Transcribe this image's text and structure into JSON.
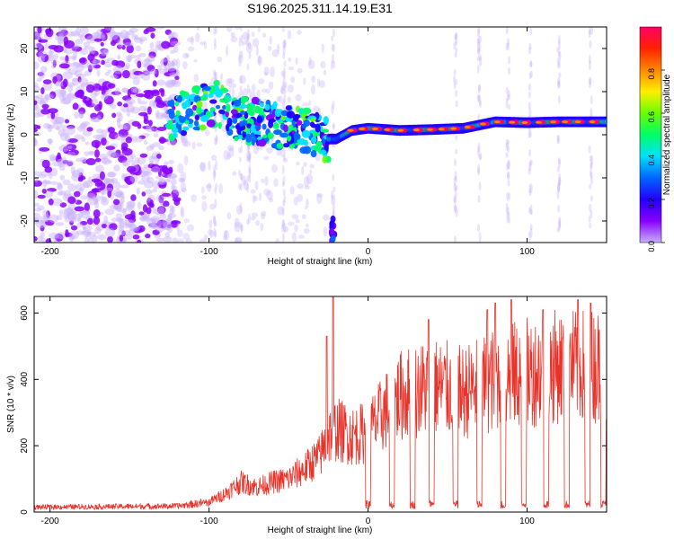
{
  "title": "S196.2025.311.14.19.E31",
  "chart_data": [
    {
      "type": "heatmap",
      "name": "spectrogram",
      "xlabel": "Height of straight line (km)",
      "ylabel": "Frequency (Hz)",
      "xlim": [
        -210,
        150
      ],
      "ylim": [
        -25,
        25
      ],
      "xticks": [
        -200,
        -100,
        0,
        100
      ],
      "yticks": [
        -20,
        -10,
        0,
        10,
        20
      ],
      "colorbar": {
        "label": "Normalized spectral amplitude",
        "range": [
          0,
          1
        ],
        "ticks": [
          "0.0",
          "0.2",
          "0.4",
          "0.6",
          "0.8"
        ],
        "colormap": [
          "#c8b0ff",
          "#8800ff",
          "#2200ff",
          "#0066ff",
          "#00e0ff",
          "#00ff66",
          "#66ff00",
          "#ffee00",
          "#ff8800",
          "#ff2200",
          "#ff0066"
        ]
      },
      "ridge_frequency_hz": [
        {
          "x": -125,
          "f": 4
        },
        {
          "x": -110,
          "f": 6
        },
        {
          "x": -95,
          "f": 7
        },
        {
          "x": -85,
          "f": 4
        },
        {
          "x": -70,
          "f": 3
        },
        {
          "x": -55,
          "f": 2
        },
        {
          "x": -40,
          "f": 1
        },
        {
          "x": -28,
          "f": -1
        },
        {
          "x": -20,
          "f": -1
        },
        {
          "x": -10,
          "f": 1
        },
        {
          "x": 0,
          "f": 1.5
        },
        {
          "x": 20,
          "f": 1
        },
        {
          "x": 40,
          "f": 1.2
        },
        {
          "x": 60,
          "f": 1.5
        },
        {
          "x": 80,
          "f": 3
        },
        {
          "x": 100,
          "f": 2.8
        },
        {
          "x": 120,
          "f": 3
        },
        {
          "x": 148,
          "f": 3
        }
      ],
      "burst_at_x_km": -22,
      "burst_freq_range_hz": [
        -25,
        -19
      ]
    },
    {
      "type": "line",
      "name": "snr",
      "xlabel": "Height of straight line (km)",
      "ylabel": "SNR (10 * v/v)",
      "xlim": [
        -210,
        150
      ],
      "ylim": [
        0,
        650
      ],
      "xticks": [
        -200,
        -100,
        0,
        100
      ],
      "yticks": [
        0,
        200,
        400,
        600
      ],
      "color": "#e8332a",
      "envelope": [
        {
          "x": -210,
          "y": 15
        },
        {
          "x": -120,
          "y": 18
        },
        {
          "x": -100,
          "y": 30
        },
        {
          "x": -90,
          "y": 55
        },
        {
          "x": -80,
          "y": 90
        },
        {
          "x": -70,
          "y": 75
        },
        {
          "x": -60,
          "y": 90
        },
        {
          "x": -50,
          "y": 100
        },
        {
          "x": -40,
          "y": 130
        },
        {
          "x": -30,
          "y": 170
        },
        {
          "x": -25,
          "y": 230
        },
        {
          "x": -20,
          "y": 250
        },
        {
          "x": -10,
          "y": 230
        },
        {
          "x": 0,
          "y": 240
        },
        {
          "x": 10,
          "y": 300
        },
        {
          "x": 20,
          "y": 350
        },
        {
          "x": 40,
          "y": 380
        },
        {
          "x": 60,
          "y": 360
        },
        {
          "x": 80,
          "y": 400
        },
        {
          "x": 100,
          "y": 420
        },
        {
          "x": 120,
          "y": 440
        },
        {
          "x": 150,
          "y": 440
        }
      ],
      "dropouts_x_km": [
        0,
        15,
        28,
        40,
        55,
        70,
        85,
        98,
        112,
        125,
        138,
        148
      ],
      "spikes": [
        {
          "x": -22,
          "y": 650
        },
        {
          "x": -26,
          "y": 530
        },
        {
          "x": 38,
          "y": 580
        },
        {
          "x": 75,
          "y": 610
        },
        {
          "x": 80,
          "y": 630
        },
        {
          "x": 90,
          "y": 640
        },
        {
          "x": 110,
          "y": 610
        },
        {
          "x": 132,
          "y": 640
        },
        {
          "x": 140,
          "y": 630
        }
      ]
    }
  ]
}
